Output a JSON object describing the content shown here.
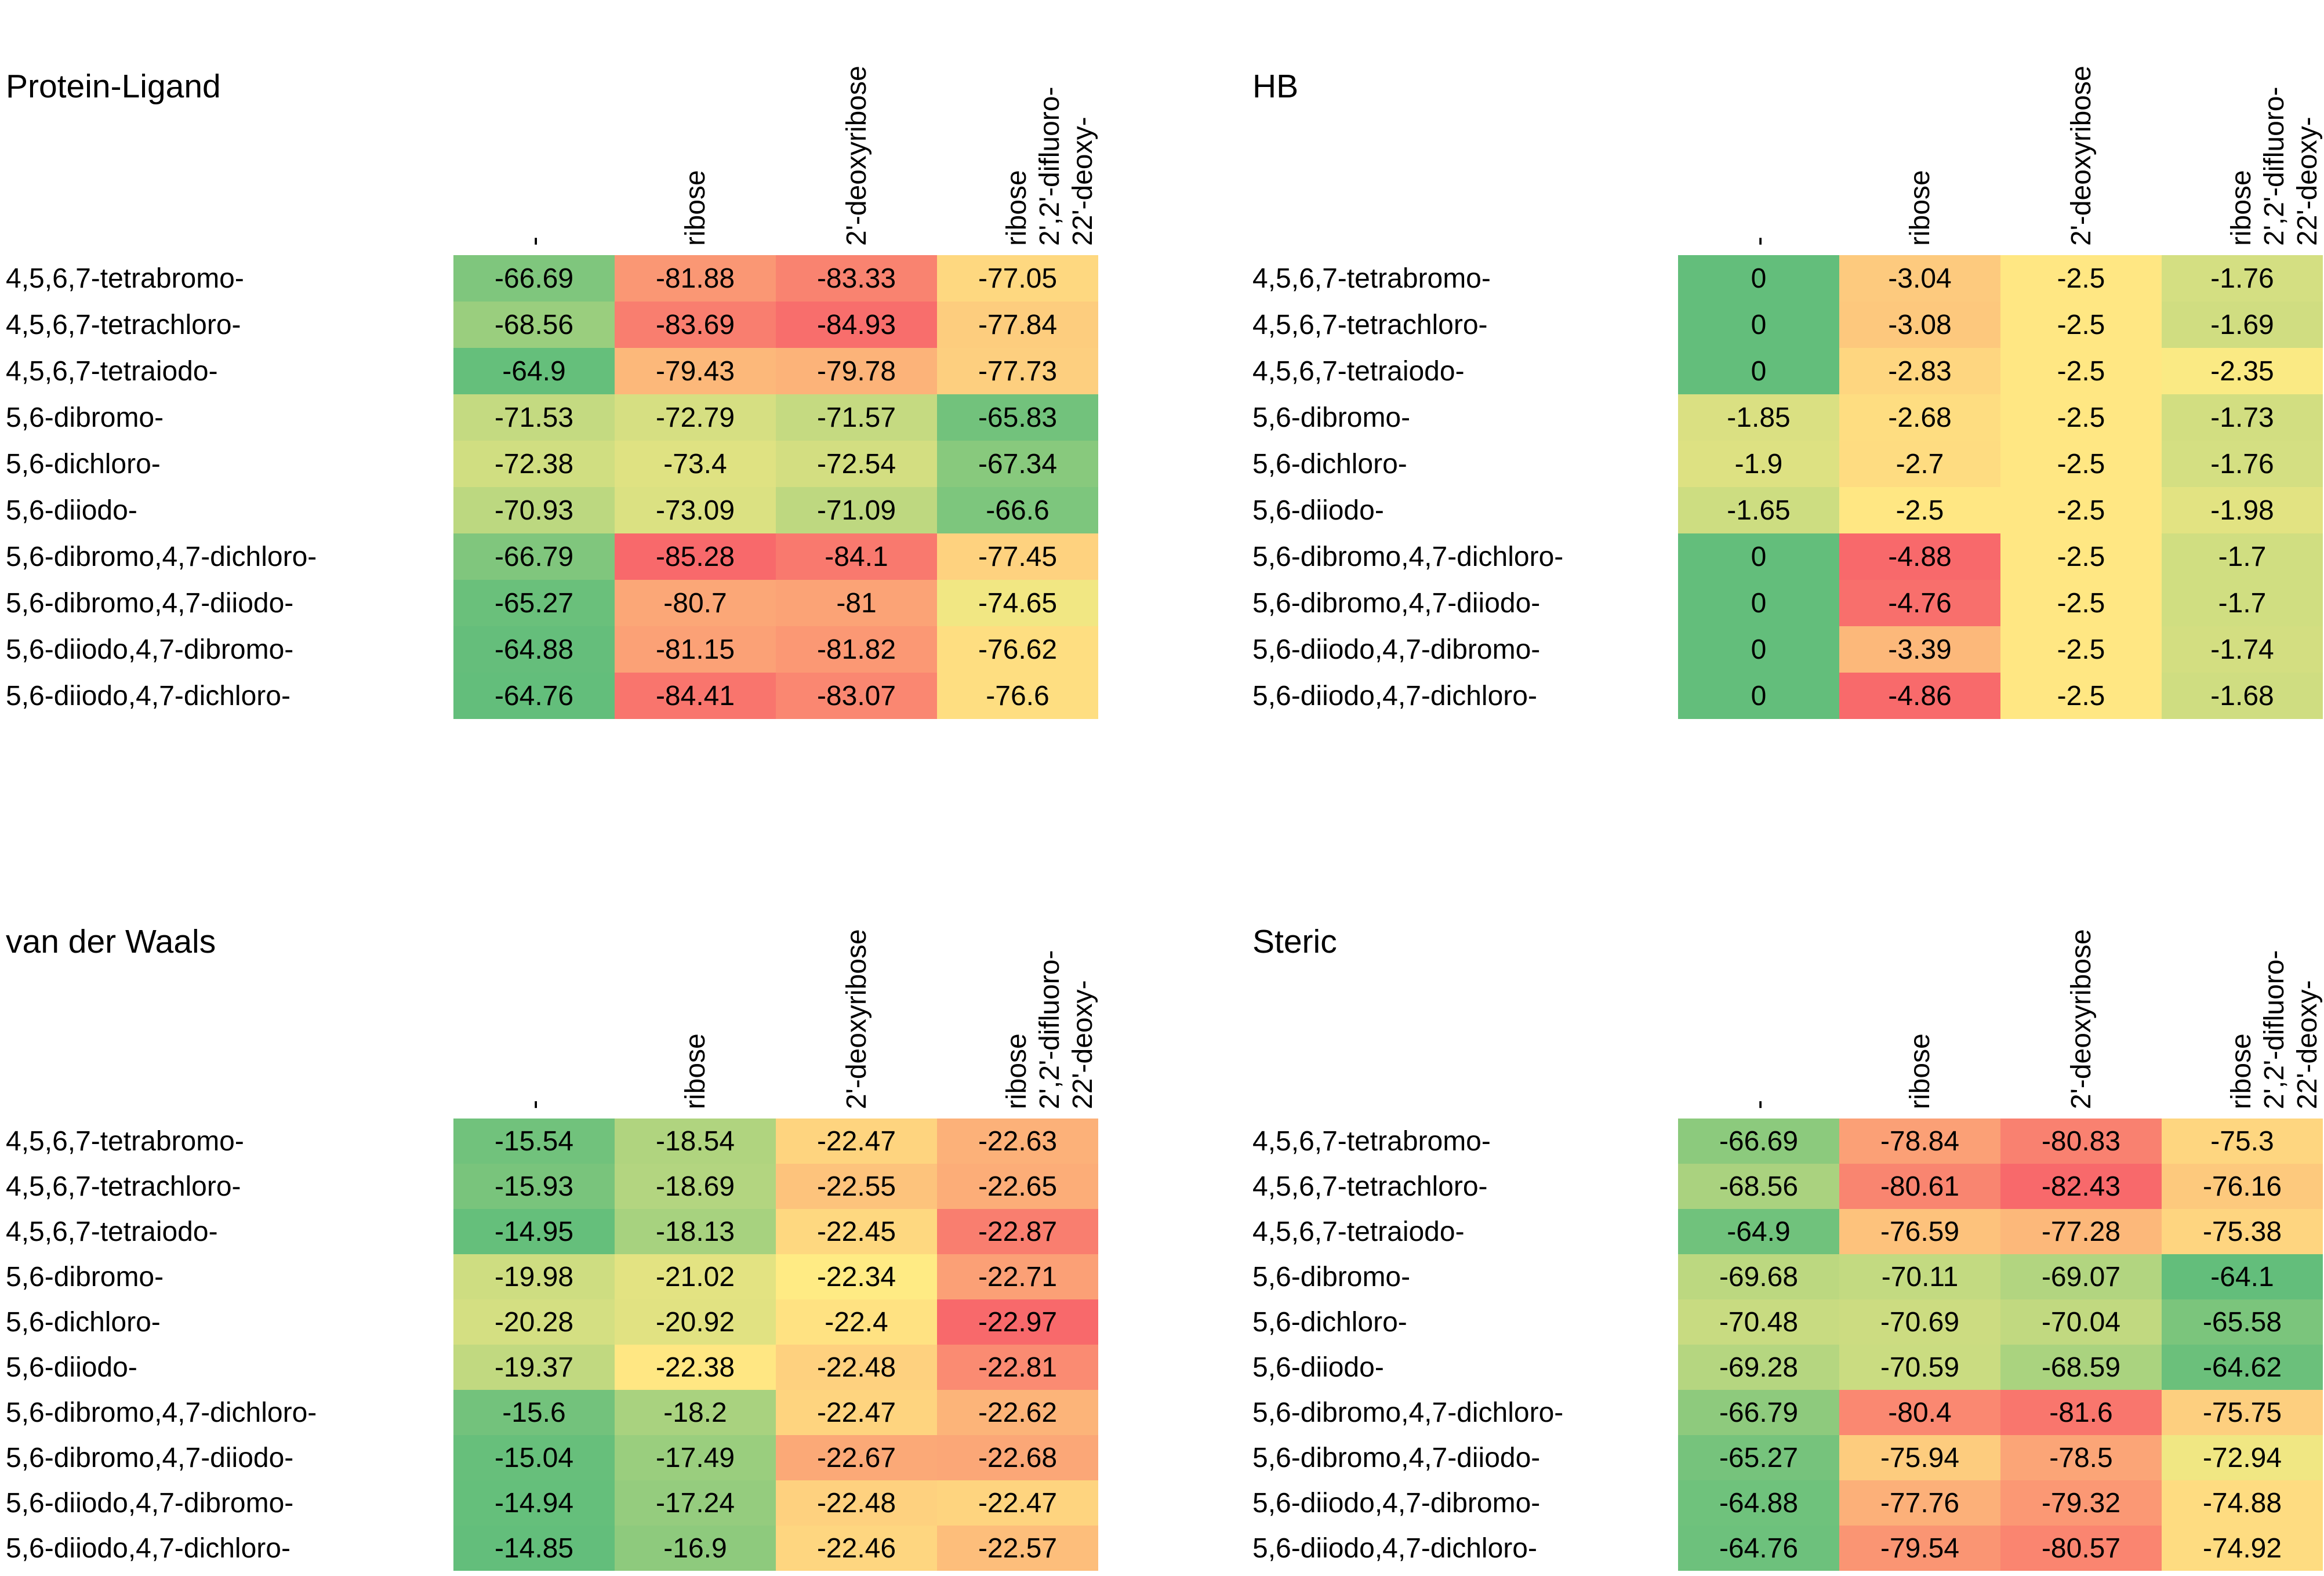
{
  "page": {
    "background": "#FFFFFF"
  },
  "color_scale": {
    "low": "#F8696B",
    "mid": "#FFEB84",
    "high": "#63BE7B",
    "midpoint": "median",
    "mapping": "most negative = red, median = yellow, least negative = green"
  },
  "chart_data": [
    {
      "type": "heatmap",
      "title": "Protein-Ligand",
      "rows": [
        "4,5,6,7-tetrabromo-",
        "4,5,6,7-tetrachloro-",
        "4,5,6,7-tetraiodo-",
        "5,6-dibromo-",
        "5,6-dichloro-",
        "5,6-diiodo-",
        "5,6-dibromo,4,7-dichloro-",
        "5,6-dibromo,4,7-diiodo-",
        "5,6-diiodo,4,7-dibromo-",
        "5,6-diiodo,4,7-dichloro-"
      ],
      "columns": [
        {
          "text": "-",
          "lines": [
            "-"
          ]
        },
        {
          "text": "ribose",
          "lines": [
            "ribose"
          ]
        },
        {
          "text": "2'-deoxyribose",
          "lines": [
            "2'-deoxyribose"
          ]
        },
        {
          "text": "22'-deoxy-2',2'-difluoro-ribose",
          "lines": [
            "ribose",
            "2',2'-difluoro-",
            "22'-deoxy-"
          ]
        }
      ],
      "values": [
        [
          "-66.69",
          "-81.88",
          "-83.33",
          "-77.05"
        ],
        [
          "-68.56",
          "-83.69",
          "-84.93",
          "-77.84"
        ],
        [
          "-64.9",
          "-79.43",
          "-79.78",
          "-77.73"
        ],
        [
          "-71.53",
          "-72.79",
          "-71.57",
          "-65.83"
        ],
        [
          "-72.38",
          "-73.4",
          "-72.54",
          "-67.34"
        ],
        [
          "-70.93",
          "-73.09",
          "-71.09",
          "-66.6"
        ],
        [
          "-66.79",
          "-85.28",
          "-84.1",
          "-77.45"
        ],
        [
          "-65.27",
          "-80.7",
          "-81",
          "-74.65"
        ],
        [
          "-64.88",
          "-81.15",
          "-81.82",
          "-76.62"
        ],
        [
          "-64.76",
          "-84.41",
          "-83.07",
          "-76.6"
        ]
      ],
      "color_scale": {
        "low": "#F8696B",
        "mid": "#FFEB84",
        "high": "#63BE7B"
      }
    },
    {
      "type": "heatmap",
      "title": "HB",
      "rows": [
        "4,5,6,7-tetrabromo-",
        "4,5,6,7-tetrachloro-",
        "4,5,6,7-tetraiodo-",
        "5,6-dibromo-",
        "5,6-dichloro-",
        "5,6-diiodo-",
        "5,6-dibromo,4,7-dichloro-",
        "5,6-dibromo,4,7-diiodo-",
        "5,6-diiodo,4,7-dibromo-",
        "5,6-diiodo,4,7-dichloro-"
      ],
      "columns": [
        {
          "text": "-",
          "lines": [
            "-"
          ]
        },
        {
          "text": "ribose",
          "lines": [
            "ribose"
          ]
        },
        {
          "text": "2'-deoxyribose",
          "lines": [
            "2'-deoxyribose"
          ]
        },
        {
          "text": "22'-deoxy-2',2'-difluoro-ribose",
          "lines": [
            "ribose",
            "2',2'-difluoro-",
            "22'-deoxy-"
          ]
        }
      ],
      "values": [
        [
          "0",
          "-3.04",
          "-2.5",
          "-1.76"
        ],
        [
          "0",
          "-3.08",
          "-2.5",
          "-1.69"
        ],
        [
          "0",
          "-2.83",
          "-2.5",
          "-2.35"
        ],
        [
          "-1.85",
          "-2.68",
          "-2.5",
          "-1.73"
        ],
        [
          "-1.9",
          "-2.7",
          "-2.5",
          "-1.76"
        ],
        [
          "-1.65",
          "-2.5",
          "-2.5",
          "-1.98"
        ],
        [
          "0",
          "-4.88",
          "-2.5",
          "-1.7"
        ],
        [
          "0",
          "-4.76",
          "-2.5",
          "-1.7"
        ],
        [
          "0",
          "-3.39",
          "-2.5",
          "-1.74"
        ],
        [
          "0",
          "-4.86",
          "-2.5",
          "-1.68"
        ]
      ],
      "color_scale": {
        "low": "#F8696B",
        "mid": "#FFEB84",
        "high": "#63BE7B"
      }
    },
    {
      "type": "heatmap",
      "title": "van der Waals",
      "rows": [
        "4,5,6,7-tetrabromo-",
        "4,5,6,7-tetrachloro-",
        "4,5,6,7-tetraiodo-",
        "5,6-dibromo-",
        "5,6-dichloro-",
        "5,6-diiodo-",
        "5,6-dibromo,4,7-dichloro-",
        "5,6-dibromo,4,7-diiodo-",
        "5,6-diiodo,4,7-dibromo-",
        "5,6-diiodo,4,7-dichloro-"
      ],
      "columns": [
        {
          "text": "-",
          "lines": [
            "-"
          ]
        },
        {
          "text": "ribose",
          "lines": [
            "ribose"
          ]
        },
        {
          "text": "2'-deoxyribose",
          "lines": [
            "2'-deoxyribose"
          ]
        },
        {
          "text": "22'-deoxy-2',2'-difluoro-ribose",
          "lines": [
            "ribose",
            "2',2'-difluoro-",
            "22'-deoxy-"
          ]
        }
      ],
      "values": [
        [
          "-15.54",
          "-18.54",
          "-22.47",
          "-22.63"
        ],
        [
          "-15.93",
          "-18.69",
          "-22.55",
          "-22.65"
        ],
        [
          "-14.95",
          "-18.13",
          "-22.45",
          "-22.87"
        ],
        [
          "-19.98",
          "-21.02",
          "-22.34",
          "-22.71"
        ],
        [
          "-20.28",
          "-20.92",
          "-22.4",
          "-22.97"
        ],
        [
          "-19.37",
          "-22.38",
          "-22.48",
          "-22.81"
        ],
        [
          "-15.6",
          "-18.2",
          "-22.47",
          "-22.62"
        ],
        [
          "-15.04",
          "-17.49",
          "-22.67",
          "-22.68"
        ],
        [
          "-14.94",
          "-17.24",
          "-22.48",
          "-22.47"
        ],
        [
          "-14.85",
          "-16.9",
          "-22.46",
          "-22.57"
        ]
      ],
      "color_scale": {
        "low": "#F8696B",
        "mid": "#FFEB84",
        "high": "#63BE7B"
      }
    },
    {
      "type": "heatmap",
      "title": "Steric",
      "rows": [
        "4,5,6,7-tetrabromo-",
        "4,5,6,7-tetrachloro-",
        "4,5,6,7-tetraiodo-",
        "5,6-dibromo-",
        "5,6-dichloro-",
        "5,6-diiodo-",
        "5,6-dibromo,4,7-dichloro-",
        "5,6-dibromo,4,7-diiodo-",
        "5,6-diiodo,4,7-dibromo-",
        "5,6-diiodo,4,7-dichloro-"
      ],
      "columns": [
        {
          "text": "-",
          "lines": [
            "-"
          ]
        },
        {
          "text": "ribose",
          "lines": [
            "ribose"
          ]
        },
        {
          "text": "2'-deoxyribose",
          "lines": [
            "2'-deoxyribose"
          ]
        },
        {
          "text": "22'-deoxy-2',2'-difluoro-ribose",
          "lines": [
            "ribose",
            "2',2'-difluoro-",
            "22'-deoxy-"
          ]
        }
      ],
      "values": [
        [
          "-66.69",
          "-78.84",
          "-80.83",
          "-75.3"
        ],
        [
          "-68.56",
          "-80.61",
          "-82.43",
          "-76.16"
        ],
        [
          "-64.9",
          "-76.59",
          "-77.28",
          "-75.38"
        ],
        [
          "-69.68",
          "-70.11",
          "-69.07",
          "-64.1"
        ],
        [
          "-70.48",
          "-70.69",
          "-70.04",
          "-65.58"
        ],
        [
          "-69.28",
          "-70.59",
          "-68.59",
          "-64.62"
        ],
        [
          "-66.79",
          "-80.4",
          "-81.6",
          "-75.75"
        ],
        [
          "-65.27",
          "-75.94",
          "-78.5",
          "-72.94"
        ],
        [
          "-64.88",
          "-77.76",
          "-79.32",
          "-74.88"
        ],
        [
          "-64.76",
          "-79.54",
          "-80.57",
          "-74.92"
        ]
      ],
      "color_scale": {
        "low": "#F8696B",
        "mid": "#FFEB84",
        "high": "#63BE7B"
      }
    }
  ]
}
